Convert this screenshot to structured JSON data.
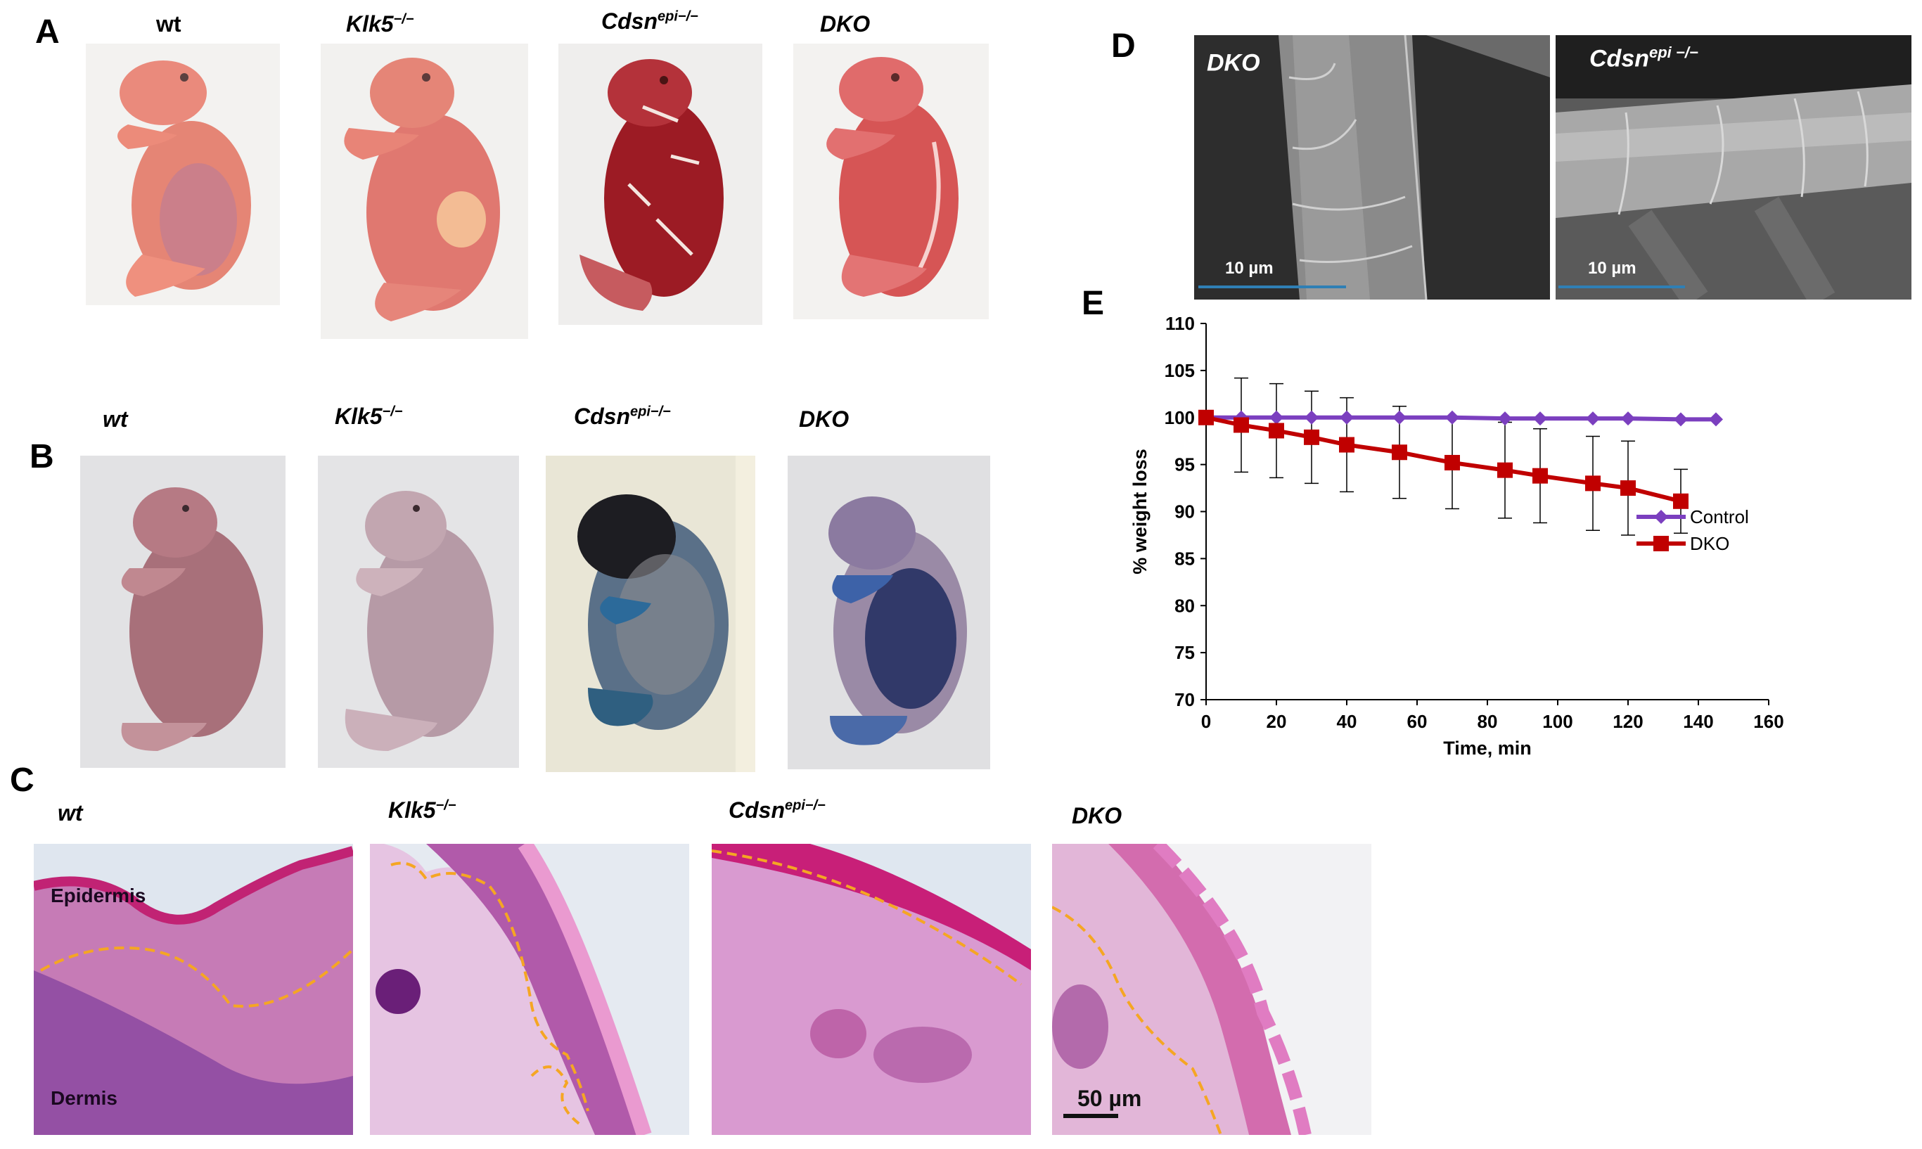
{
  "panels": {
    "A": "A",
    "B": "B",
    "C": "C",
    "D": "D",
    "E": "E"
  },
  "panel_a": {
    "labels": [
      {
        "base": "wt",
        "sup": ""
      },
      {
        "base": "Klk5",
        "sup": "−/−"
      },
      {
        "base": "Cdsn",
        "sup": "epi−/−"
      },
      {
        "base": "DKO",
        "sup": ""
      }
    ]
  },
  "panel_b": {
    "labels": [
      {
        "base": "wt",
        "sup": ""
      },
      {
        "base": "Klk5",
        "sup": "−/−"
      },
      {
        "base": "Cdsn",
        "sup": "epi−/−"
      },
      {
        "base": "DKO",
        "sup": ""
      }
    ]
  },
  "panel_c": {
    "labels": [
      {
        "base": "wt",
        "sup": ""
      },
      {
        "base": "Klk5",
        "sup": "−/−"
      },
      {
        "base": "Cdsn",
        "sup": "epi−/−"
      },
      {
        "base": "DKO",
        "sup": ""
      }
    ],
    "epidermis": "Epidermis",
    "dermis": "Dermis",
    "scale": "50 µm"
  },
  "panel_d": {
    "left_label": {
      "base": "DKO",
      "sup": ""
    },
    "right_label": {
      "base": "Cdsn",
      "sup": "epi −/−"
    },
    "scale": "10 µm"
  },
  "colors": {
    "control": "#7b3fbf",
    "dko": "#c00000",
    "boundary": "#f5a623"
  },
  "chart_data": {
    "type": "line",
    "xlabel": "Time, min",
    "ylabel": "% weight loss",
    "xlim": [
      0,
      160
    ],
    "ylim": [
      70,
      110
    ],
    "xticks": [
      0,
      20,
      40,
      60,
      80,
      100,
      120,
      140,
      160
    ],
    "yticks": [
      70,
      75,
      80,
      85,
      90,
      95,
      100,
      105,
      110
    ],
    "legend_position": "right",
    "series": [
      {
        "name": "Control",
        "marker": "diamond",
        "x": [
          0,
          10,
          20,
          30,
          40,
          55,
          70,
          85,
          95,
          110,
          120,
          135,
          145
        ],
        "y": [
          100,
          100,
          100,
          100,
          100,
          100,
          100,
          99.9,
          99.9,
          99.9,
          99.9,
          99.8,
          99.8
        ]
      },
      {
        "name": "DKO",
        "marker": "square",
        "x": [
          0,
          10,
          20,
          30,
          40,
          55,
          70,
          85,
          95,
          110,
          120,
          135
        ],
        "y": [
          100,
          99.2,
          98.6,
          97.9,
          97.1,
          96.3,
          95.2,
          94.4,
          93.8,
          93.0,
          92.5,
          91.1
        ],
        "error": [
          0,
          5,
          5,
          4.9,
          5,
          4.9,
          4.9,
          5.1,
          5,
          5,
          5,
          3.4
        ]
      }
    ]
  }
}
